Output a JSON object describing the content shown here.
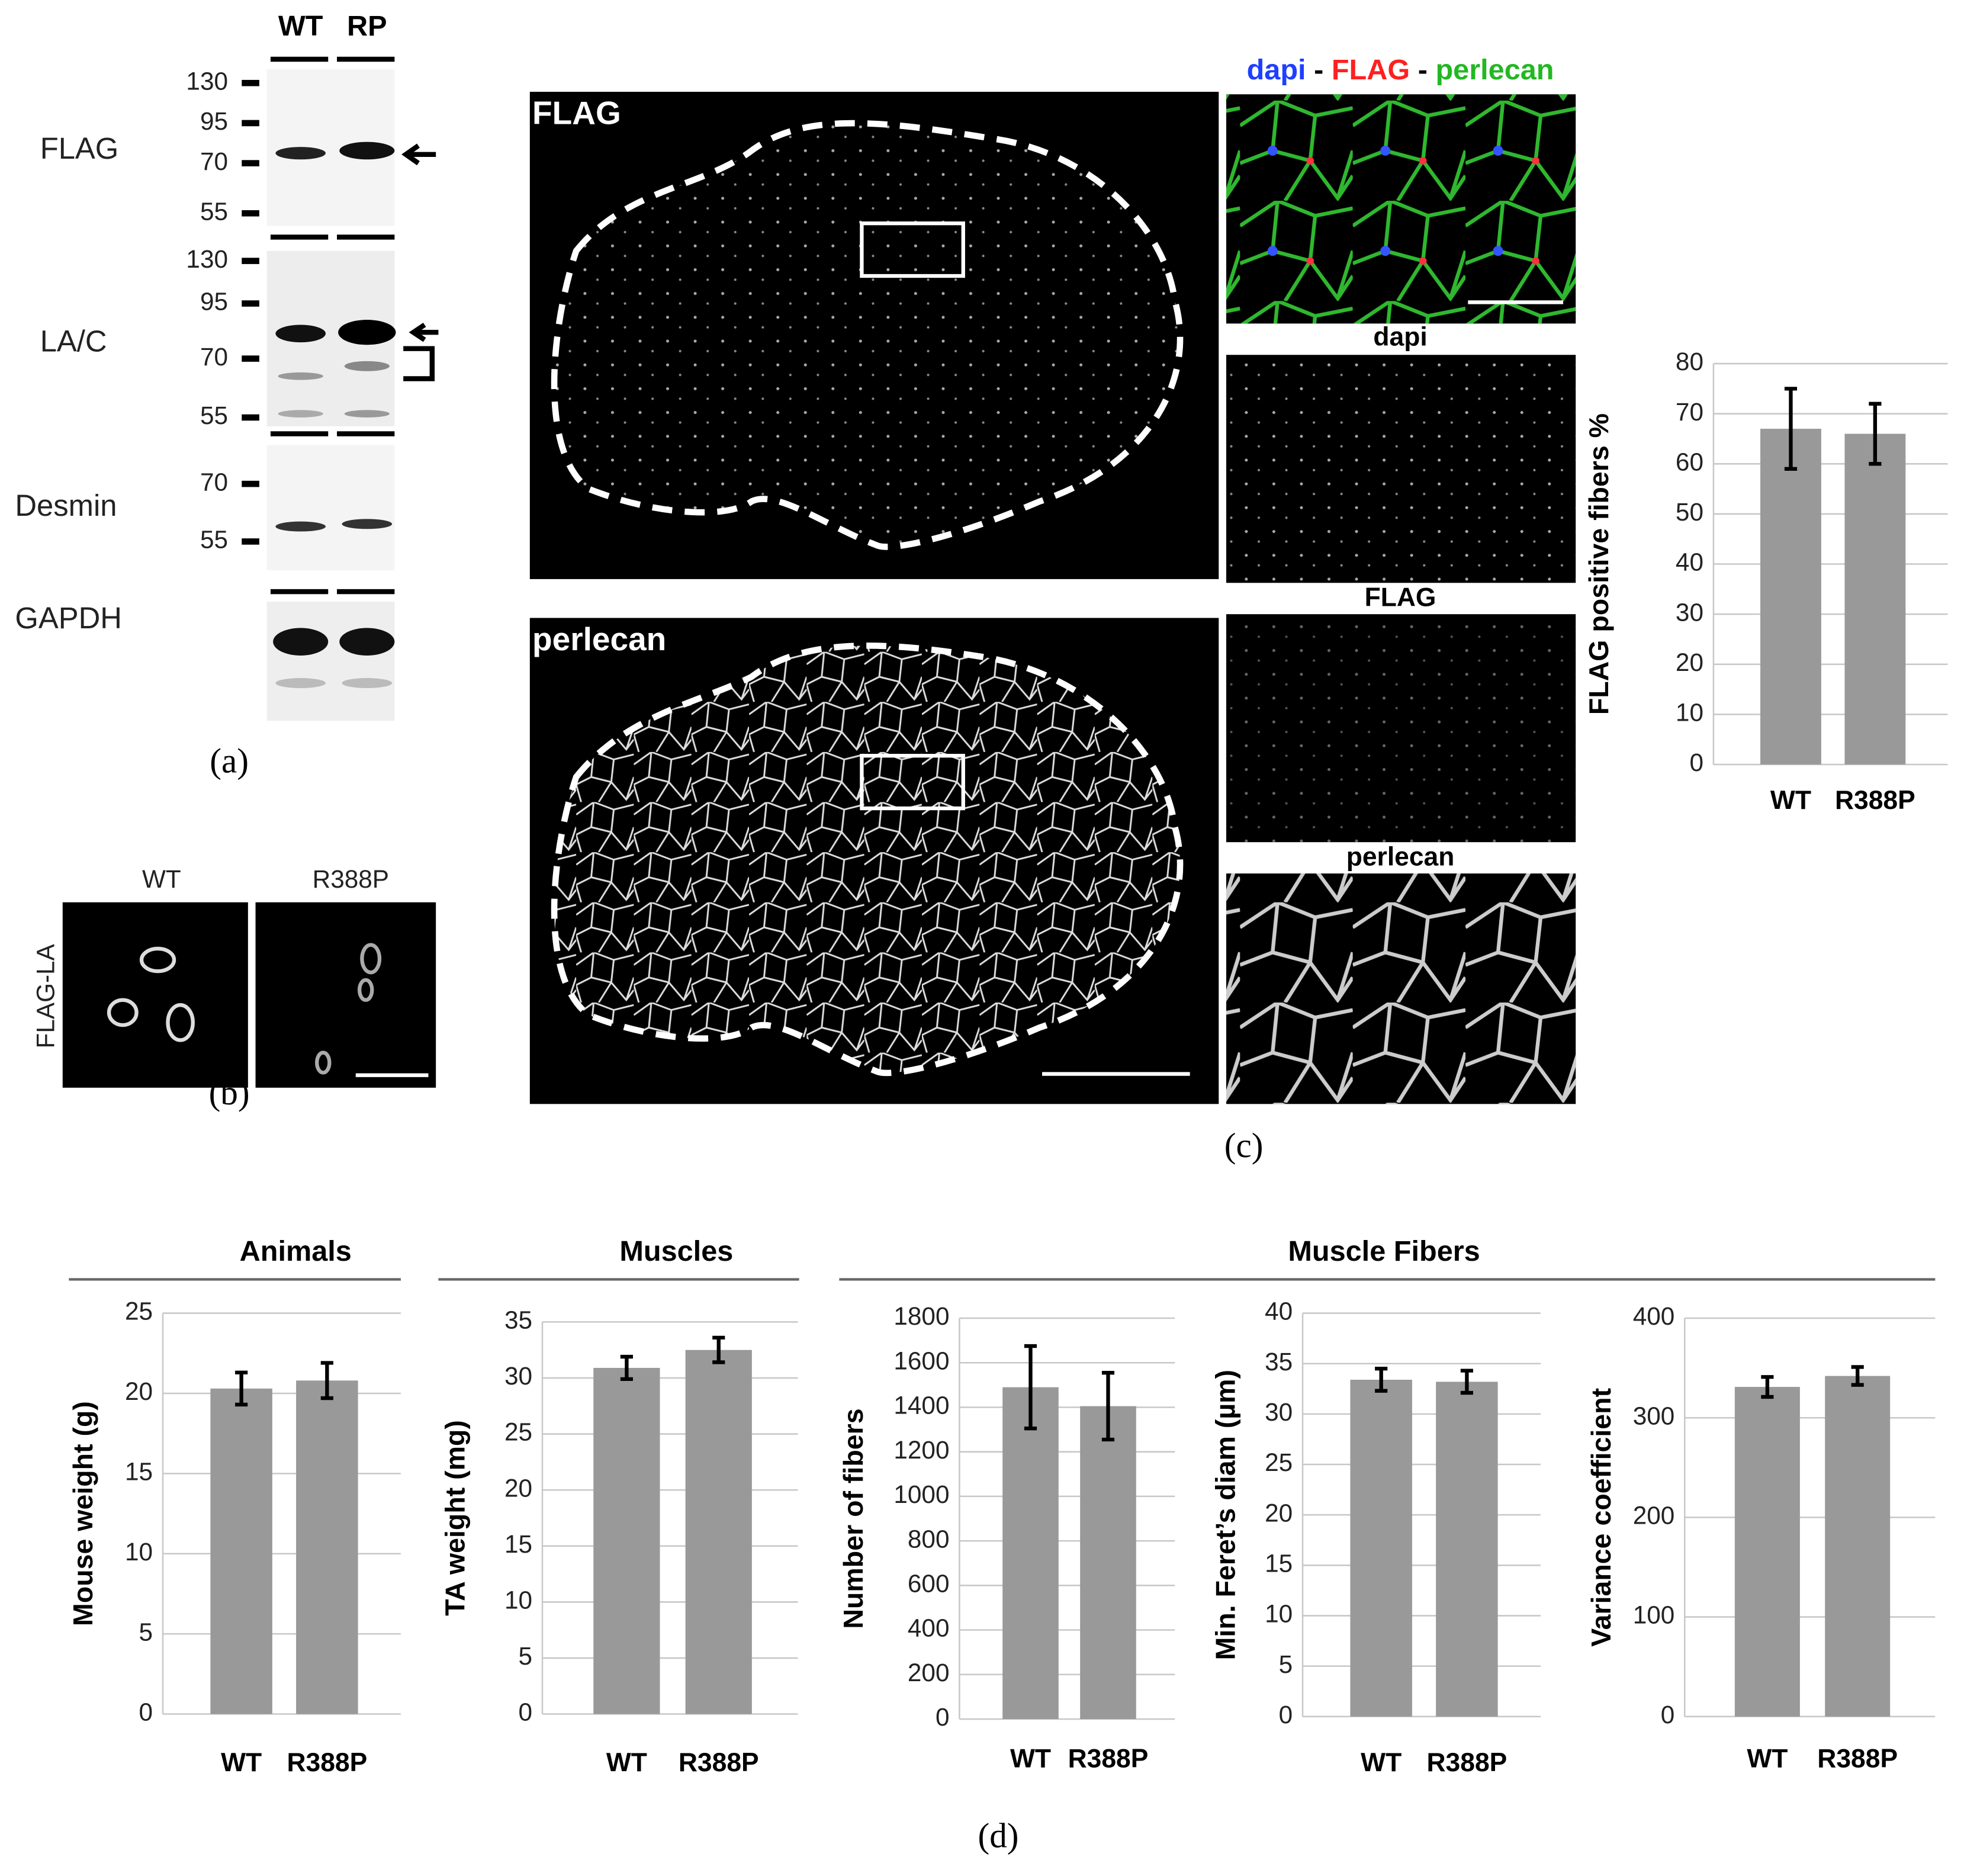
{
  "panel_labels": {
    "a": "(a)",
    "b": "(b)",
    "c": "(c)",
    "d": "(d)"
  },
  "blot": {
    "lanes": [
      "WT",
      "RP"
    ],
    "rows": [
      {
        "label": "FLAG",
        "markers": [
          130,
          95,
          70,
          55
        ]
      },
      {
        "label": "LA/C",
        "markers": [
          130,
          95,
          70,
          55
        ]
      },
      {
        "label": "Desmin",
        "markers": [
          70,
          55
        ]
      },
      {
        "label": "GAPDH"
      }
    ]
  },
  "cell_images": {
    "label": "FLAG-LA",
    "columns": [
      "WT",
      "R388P"
    ]
  },
  "sections": {
    "large": [
      "FLAG",
      "perlecan"
    ],
    "insets_header": [
      "dapi",
      "-",
      "FLAG",
      "-",
      "perlecan"
    ],
    "insets": [
      "dapi",
      "FLAG",
      "perlecan"
    ]
  },
  "group_title": "Muscle Fibers",
  "chart_data": [
    {
      "type": "bar",
      "y_label": "FLAG positive fibers %",
      "categories": [
        "WT",
        "R388P"
      ],
      "values": [
        67,
        66
      ],
      "errors": [
        8,
        6
      ],
      "color": "#999999",
      "ylim": [
        0,
        80
      ],
      "yticks": [
        0,
        10,
        20,
        30,
        40,
        50,
        60,
        70,
        80
      ],
      "grid": true
    },
    {
      "type": "bar",
      "title": "Animals",
      "y_label": "Mouse weight (g)",
      "categories": [
        "WT",
        "R388P"
      ],
      "values": [
        20.3,
        20.8
      ],
      "errors": [
        1.0,
        1.1
      ],
      "color": "#999999",
      "ylim": [
        0,
        25
      ],
      "yticks": [
        0,
        5,
        10,
        15,
        20,
        25
      ],
      "grid": true
    },
    {
      "type": "bar",
      "title": "Muscles",
      "y_label": "TA weight (mg)",
      "categories": [
        "WT",
        "R388P"
      ],
      "values": [
        30.9,
        32.5
      ],
      "errors": [
        1.0,
        1.1
      ],
      "color": "#999999",
      "ylim": [
        0,
        35
      ],
      "yticks": [
        0,
        5,
        10,
        15,
        20,
        25,
        30,
        35
      ],
      "grid": true
    },
    {
      "type": "bar",
      "y_label": "Number of fibers",
      "categories": [
        "WT",
        "R388P"
      ],
      "values": [
        1490,
        1405
      ],
      "errors": [
        185,
        150
      ],
      "color": "#999999",
      "ylim": [
        0,
        1800
      ],
      "yticks": [
        0,
        200,
        400,
        600,
        800,
        1000,
        1200,
        1400,
        1600,
        1800
      ],
      "grid": true
    },
    {
      "type": "bar",
      "y_label": "Min. Feret’s diam (µm)",
      "categories": [
        "WT",
        "R388P"
      ],
      "values": [
        33.4,
        33.2
      ],
      "errors": [
        1.1,
        1.1
      ],
      "color": "#999999",
      "ylim": [
        0,
        40
      ],
      "yticks": [
        0,
        5,
        10,
        15,
        20,
        25,
        30,
        35,
        40
      ],
      "grid": true
    },
    {
      "type": "bar",
      "y_label": "Variance coefficient",
      "categories": [
        "WT",
        "R388P"
      ],
      "values": [
        331,
        342
      ],
      "errors": [
        10,
        9
      ],
      "color": "#999999",
      "ylim": [
        0,
        400
      ],
      "yticks": [
        0,
        100,
        200,
        300,
        400
      ],
      "grid": true
    }
  ]
}
